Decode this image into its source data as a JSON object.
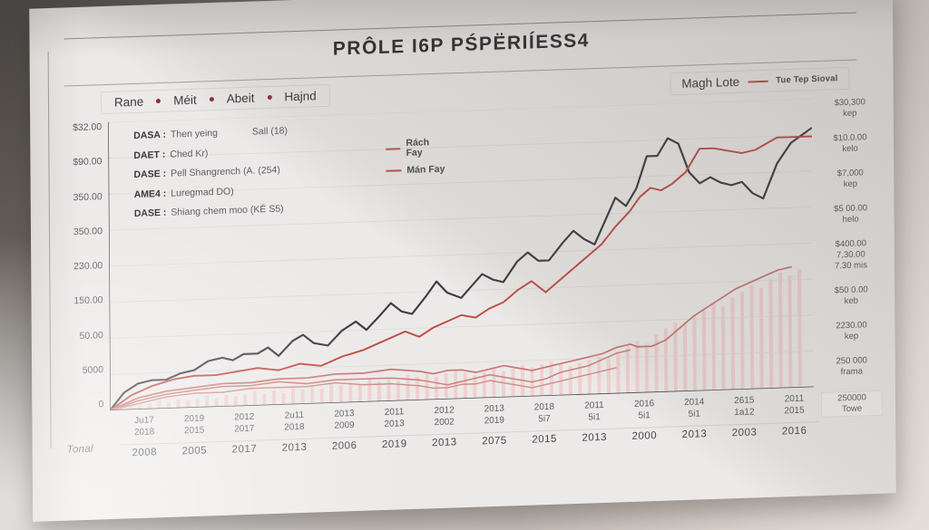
{
  "title": "PRÔLE I6P PŚPËRIÍESS4",
  "legend_bar": {
    "left_items": [
      {
        "label": "Rane"
      },
      {
        "label": "Méit"
      },
      {
        "label": "Abeit"
      },
      {
        "label": "Hajnd"
      }
    ],
    "right": {
      "label": "Magh Lote",
      "series_label": "Tue Tep Sioval"
    }
  },
  "info_box": {
    "rows": [
      {
        "key": "DASA",
        "value": "Then yeing",
        "extra": "Sall (18)"
      },
      {
        "key": "DAET",
        "value": "Ched Kr)",
        "legend": "Rách Fay"
      },
      {
        "key": "DASE",
        "value": "Pell Shangrench (A. (254)",
        "legend": "Mán Fay"
      },
      {
        "key": "AME4",
        "value": "Luregmad DO)"
      },
      {
        "key": "DASE",
        "value": "Shiang chem moo (KĒ S5)"
      }
    ]
  },
  "footer_label": "Tonal",
  "colors": {
    "line_black": "#3d3c41",
    "line_red": "#bf4b47",
    "line_pink_a": "#c97874",
    "line_pink_b": "#cc817d",
    "line_pink_c": "#d28d89",
    "bar_pink": "#f0d0cf",
    "axis": "#4a4a4f",
    "grid": "rgba(0,0,0,0.06)",
    "legend_dot": "#8e2f3c"
  },
  "chart_data": {
    "type": "line+bar",
    "title": "PRÔLE I6P PŚPËRIÍESS4",
    "grid": true,
    "left_axis_labels": [
      "$32.00",
      "$90.00",
      "350.00",
      "350.00",
      "230.00",
      "150.00",
      "50.00",
      "5000",
      "0"
    ],
    "right_axis_labels": [
      [
        "$30,300",
        "kep"
      ],
      [
        "$10.0.00",
        "kelo"
      ],
      [
        "$7,000",
        "kep"
      ],
      [
        "$5 00.00",
        "helo"
      ],
      [
        "$400.00",
        "7,30.00",
        "7.30 mis"
      ],
      [
        "$50 0.00",
        "keb"
      ],
      [
        "2230.00",
        "kep"
      ],
      [
        "250 000",
        "frama"
      ],
      [
        "250000",
        "Towe"
      ]
    ],
    "x_ticks": [
      {
        "a": "Ju17",
        "b": "2018",
        "c": "2008"
      },
      {
        "a": "2019",
        "b": "2015",
        "c": "2005"
      },
      {
        "a": "2012",
        "b": "2017",
        "c": "2017"
      },
      {
        "a": "2u11",
        "b": "2018",
        "c": "2013"
      },
      {
        "a": "2013",
        "b": "2009",
        "c": "2006"
      },
      {
        "a": "2011",
        "b": "2013",
        "c": "2019"
      },
      {
        "a": "2012",
        "b": "2002",
        "c": "2013"
      },
      {
        "a": "2013",
        "b": "2019",
        "c": "2075"
      },
      {
        "a": "2018",
        "b": "5i7",
        "c": "2015"
      },
      {
        "a": "2011",
        "b": "5i1",
        "c": "2013"
      },
      {
        "a": "2016",
        "b": "5i1",
        "c": "2000"
      },
      {
        "a": "2014",
        "b": "5i1",
        "c": "2013"
      },
      {
        "a": "2615",
        "b": "1a12",
        "c": "2003"
      },
      {
        "a": "2011",
        "b": "2015",
        "c": "2016"
      }
    ],
    "series": [
      {
        "name": "black-main-line",
        "color": "#3d3c41",
        "width": 2.2,
        "points": [
          [
            0,
            0
          ],
          [
            2,
            6
          ],
          [
            4,
            9
          ],
          [
            6,
            10
          ],
          [
            8,
            10
          ],
          [
            10,
            12
          ],
          [
            12,
            13
          ],
          [
            14,
            16
          ],
          [
            16,
            17
          ],
          [
            17.5,
            16
          ],
          [
            19,
            18
          ],
          [
            21,
            18
          ],
          [
            22.5,
            20
          ],
          [
            24,
            17
          ],
          [
            26,
            22
          ],
          [
            27.5,
            24
          ],
          [
            29,
            21
          ],
          [
            31,
            20
          ],
          [
            33,
            25
          ],
          [
            35,
            28
          ],
          [
            36.5,
            25
          ],
          [
            38.5,
            30
          ],
          [
            40,
            34
          ],
          [
            41.5,
            31
          ],
          [
            43,
            30
          ],
          [
            45,
            36
          ],
          [
            46.5,
            41
          ],
          [
            48,
            37
          ],
          [
            50,
            35
          ],
          [
            51.5,
            39
          ],
          [
            53,
            43
          ],
          [
            54.5,
            41
          ],
          [
            56,
            40
          ],
          [
            58,
            47
          ],
          [
            59.5,
            50
          ],
          [
            61,
            47
          ],
          [
            62.5,
            47
          ],
          [
            64.5,
            53
          ],
          [
            66,
            57
          ],
          [
            67.5,
            54
          ],
          [
            69,
            52
          ],
          [
            70.5,
            60
          ],
          [
            72,
            68
          ],
          [
            73.5,
            65
          ],
          [
            75,
            71
          ],
          [
            76.5,
            82
          ],
          [
            78,
            82
          ],
          [
            79.5,
            88
          ],
          [
            81,
            86
          ],
          [
            82.5,
            76
          ],
          [
            84,
            72
          ],
          [
            85.5,
            74
          ],
          [
            87,
            72
          ],
          [
            88.5,
            71
          ],
          [
            90,
            72
          ],
          [
            91.5,
            68
          ],
          [
            93,
            66
          ],
          [
            95,
            78
          ],
          [
            97,
            85
          ],
          [
            100,
            90
          ]
        ]
      },
      {
        "name": "red-main-line",
        "color": "#bf4b47",
        "width": 2,
        "points": [
          [
            0,
            0
          ],
          [
            3,
            5
          ],
          [
            6,
            8
          ],
          [
            9,
            10
          ],
          [
            12,
            11
          ],
          [
            15,
            11
          ],
          [
            18,
            12
          ],
          [
            21,
            13
          ],
          [
            24,
            12
          ],
          [
            27,
            14
          ],
          [
            30,
            13
          ],
          [
            33,
            16
          ],
          [
            36,
            18
          ],
          [
            38,
            20
          ],
          [
            40,
            22
          ],
          [
            42,
            24
          ],
          [
            44,
            22
          ],
          [
            46,
            25
          ],
          [
            48,
            27
          ],
          [
            50,
            29
          ],
          [
            52,
            28
          ],
          [
            54,
            31
          ],
          [
            56,
            33
          ],
          [
            58,
            37
          ],
          [
            60,
            40
          ],
          [
            62,
            36
          ],
          [
            64,
            40
          ],
          [
            66,
            44
          ],
          [
            68,
            48
          ],
          [
            70,
            52
          ],
          [
            72,
            58
          ],
          [
            74,
            63
          ],
          [
            75.5,
            68
          ],
          [
            77,
            71
          ],
          [
            78.5,
            70
          ],
          [
            80,
            72
          ],
          [
            82,
            76
          ],
          [
            84,
            84
          ],
          [
            86,
            84
          ],
          [
            88,
            83
          ],
          [
            90,
            82
          ],
          [
            92,
            83
          ],
          [
            95,
            87
          ],
          [
            100,
            87
          ]
        ]
      },
      {
        "name": "pink-line-a",
        "color": "#c97874",
        "width": 1.8,
        "points": [
          [
            0,
            0
          ],
          [
            4,
            4
          ],
          [
            8,
            6
          ],
          [
            12,
            7
          ],
          [
            16,
            8
          ],
          [
            20,
            8
          ],
          [
            24,
            9
          ],
          [
            28,
            9
          ],
          [
            32,
            10
          ],
          [
            36,
            10
          ],
          [
            40,
            11
          ],
          [
            44,
            10
          ],
          [
            46,
            9
          ],
          [
            48,
            10
          ],
          [
            50,
            10
          ],
          [
            52,
            9
          ],
          [
            54,
            10
          ],
          [
            56,
            11
          ],
          [
            58,
            10
          ],
          [
            60,
            9
          ],
          [
            62,
            10
          ],
          [
            64,
            11
          ],
          [
            66,
            12
          ],
          [
            68,
            13
          ],
          [
            70,
            14
          ],
          [
            72,
            16
          ],
          [
            74,
            17
          ],
          [
            75,
            16
          ],
          [
            77,
            16
          ],
          [
            79,
            18
          ],
          [
            81,
            22
          ],
          [
            83,
            26
          ],
          [
            85,
            29
          ],
          [
            87,
            32
          ],
          [
            89,
            35
          ],
          [
            91,
            37
          ],
          [
            93,
            39
          ],
          [
            95,
            41
          ],
          [
            97,
            42
          ]
        ]
      },
      {
        "name": "pink-line-b",
        "color": "#cc817d",
        "width": 1.6,
        "points": [
          [
            0,
            0
          ],
          [
            4,
            3
          ],
          [
            8,
            5
          ],
          [
            12,
            6
          ],
          [
            16,
            7
          ],
          [
            20,
            7
          ],
          [
            24,
            8
          ],
          [
            28,
            7
          ],
          [
            32,
            8
          ],
          [
            36,
            8
          ],
          [
            40,
            8
          ],
          [
            44,
            7
          ],
          [
            46,
            6
          ],
          [
            48,
            5
          ],
          [
            50,
            6
          ],
          [
            52,
            7
          ],
          [
            54,
            8
          ],
          [
            56,
            7
          ],
          [
            58,
            6
          ],
          [
            60,
            5
          ],
          [
            62,
            6
          ],
          [
            64,
            8
          ],
          [
            66,
            9
          ],
          [
            68,
            10
          ],
          [
            70,
            12
          ],
          [
            72,
            14
          ],
          [
            74,
            15
          ]
        ]
      },
      {
        "name": "pink-line-c",
        "color": "#d28d89",
        "width": 1.5,
        "points": [
          [
            0,
            0
          ],
          [
            4,
            2
          ],
          [
            8,
            4
          ],
          [
            12,
            5
          ],
          [
            16,
            5
          ],
          [
            20,
            6
          ],
          [
            24,
            6
          ],
          [
            28,
            6
          ],
          [
            32,
            7
          ],
          [
            36,
            6
          ],
          [
            40,
            6
          ],
          [
            44,
            5
          ],
          [
            46,
            4
          ],
          [
            48,
            4
          ],
          [
            50,
            5
          ],
          [
            52,
            5
          ],
          [
            54,
            6
          ],
          [
            56,
            5
          ],
          [
            58,
            4
          ],
          [
            60,
            3
          ],
          [
            62,
            4
          ],
          [
            64,
            5
          ],
          [
            66,
            6
          ],
          [
            68,
            7
          ],
          [
            70,
            8
          ],
          [
            72,
            9
          ]
        ]
      }
    ],
    "bars": {
      "name": "pink-volume-bars",
      "color": "#f0d0cf",
      "values": [
        1,
        2,
        1.5,
        2,
        3,
        2,
        3,
        2.5,
        3,
        4,
        3,
        4,
        3.5,
        4,
        5,
        4,
        5,
        4,
        6,
        5,
        6,
        5,
        7,
        6,
        7,
        6,
        8,
        7,
        8,
        7,
        9,
        8,
        9,
        8,
        9,
        10,
        9,
        8,
        9,
        10,
        9,
        10,
        11,
        10,
        11,
        12,
        11,
        10,
        11,
        12,
        13,
        12,
        14,
        16,
        18,
        17,
        20,
        22,
        24,
        23,
        26,
        28,
        30,
        29,
        32,
        34,
        36,
        35,
        38,
        40,
        39,
        41
      ]
    }
  }
}
